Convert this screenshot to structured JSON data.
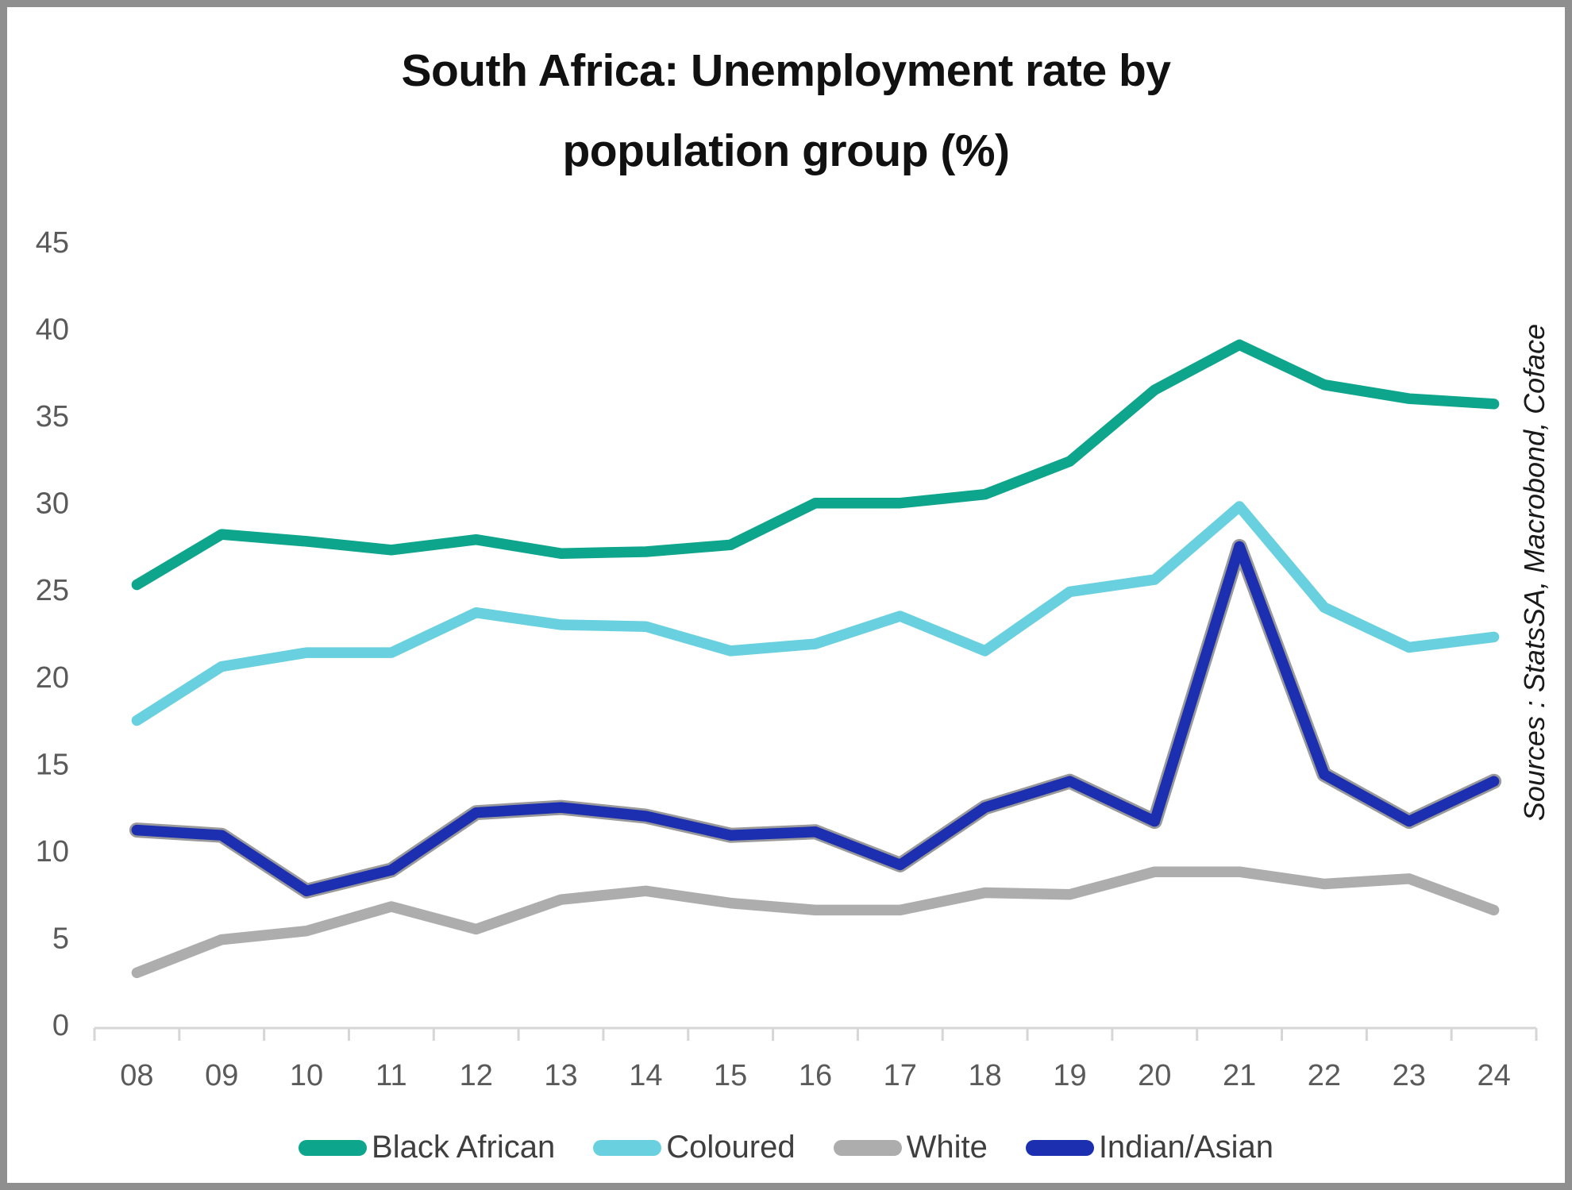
{
  "frame": {
    "border_color": "#8f8f8f",
    "background": "#ffffff"
  },
  "title_lines": [
    "South Africa: Unemployment rate by",
    "population group (%)"
  ],
  "source_note": "Sources : StatsSA, Macrobond, Coface",
  "axis": {
    "line_color": "#d6d6d6",
    "label_color": "#5a5a5a"
  },
  "chart_data": {
    "type": "line",
    "title": "South Africa: Unemployment rate by population group (%)",
    "xlabel": "",
    "ylabel": "",
    "ylim": [
      0,
      45
    ],
    "yticks": [
      0,
      5,
      10,
      15,
      20,
      25,
      30,
      35,
      40,
      45
    ],
    "grid": false,
    "legend_position": "bottom",
    "categories": [
      "08",
      "09",
      "10",
      "11",
      "12",
      "13",
      "14",
      "15",
      "16",
      "17",
      "18",
      "19",
      "20",
      "21",
      "22",
      "23",
      "24"
    ],
    "series": [
      {
        "name": "Black African",
        "color": "#0da58c",
        "values": [
          25.3,
          28.2,
          27.8,
          27.3,
          27.9,
          27.1,
          27.2,
          27.6,
          30.0,
          30.0,
          30.5,
          32.4,
          36.5,
          39.1,
          36.8,
          36.0,
          35.7
        ]
      },
      {
        "name": "Coloured",
        "color": "#68d0df",
        "values": [
          17.5,
          20.6,
          21.4,
          21.4,
          23.7,
          23.0,
          22.9,
          21.5,
          21.9,
          23.5,
          21.5,
          24.9,
          25.6,
          29.8,
          24.0,
          21.7,
          22.3
        ]
      },
      {
        "name": "White",
        "color": "#adadad",
        "values": [
          3.0,
          4.9,
          5.4,
          6.8,
          5.5,
          7.2,
          7.7,
          7.0,
          6.6,
          6.6,
          7.6,
          7.5,
          8.8,
          8.8,
          8.1,
          8.4,
          6.6
        ]
      },
      {
        "name": "Indian/Asian",
        "color": "#1c2fb0",
        "outline_color": "#9a9a9a",
        "values": [
          11.2,
          10.9,
          7.7,
          8.9,
          12.2,
          12.5,
          12.0,
          10.9,
          11.1,
          9.2,
          12.5,
          14.0,
          11.7,
          27.5,
          14.4,
          11.7,
          14.0
        ]
      }
    ]
  }
}
